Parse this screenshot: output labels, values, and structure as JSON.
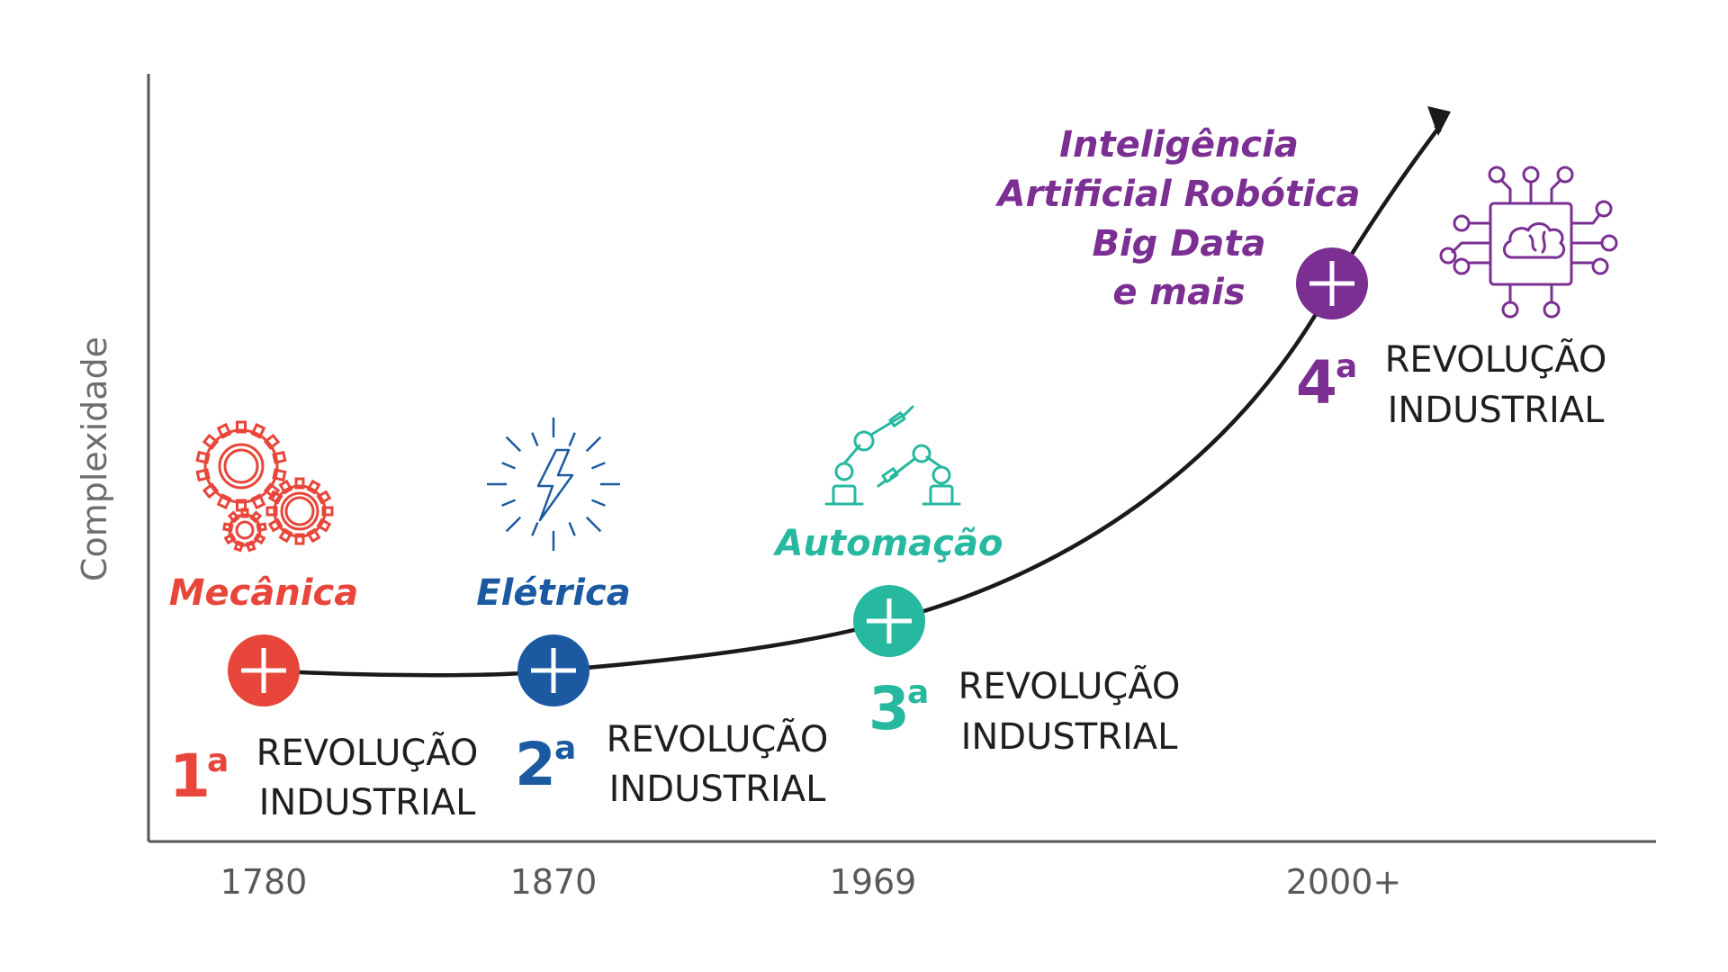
{
  "axis": {
    "y_title": "Complexidade",
    "x_ticks": [
      "1780",
      "1870",
      "1969",
      "2000+"
    ]
  },
  "revolutions": [
    {
      "ordinal": "1",
      "ordinal_suffix": "a",
      "line1": "REVOLUÇÃO",
      "line2": "INDUSTRIAL",
      "theme": "Mecânica",
      "color": "#e8463a",
      "icon": "gears-icon"
    },
    {
      "ordinal": "2",
      "ordinal_suffix": "a",
      "line1": "REVOLUÇÃO",
      "line2": "INDUSTRIAL",
      "theme": "Elétrica",
      "color": "#1b5aa1",
      "icon": "lightning-icon"
    },
    {
      "ordinal": "3",
      "ordinal_suffix": "a",
      "line1": "REVOLUÇÃO",
      "line2": "INDUSTRIAL",
      "theme": "Automação",
      "color": "#27b8a0",
      "icon": "robot-arms-icon"
    },
    {
      "ordinal": "4",
      "ordinal_suffix": "a",
      "line1": "REVOLUÇÃO",
      "line2": "INDUSTRIAL",
      "theme_lines": [
        "Inteligência",
        "Artificial Robótica",
        "Big Data",
        "e mais"
      ],
      "color": "#7b2f93",
      "icon": "brain-circuit-icon"
    }
  ],
  "colors": {
    "curve": "#1a1a1a",
    "axis": "#555555"
  }
}
